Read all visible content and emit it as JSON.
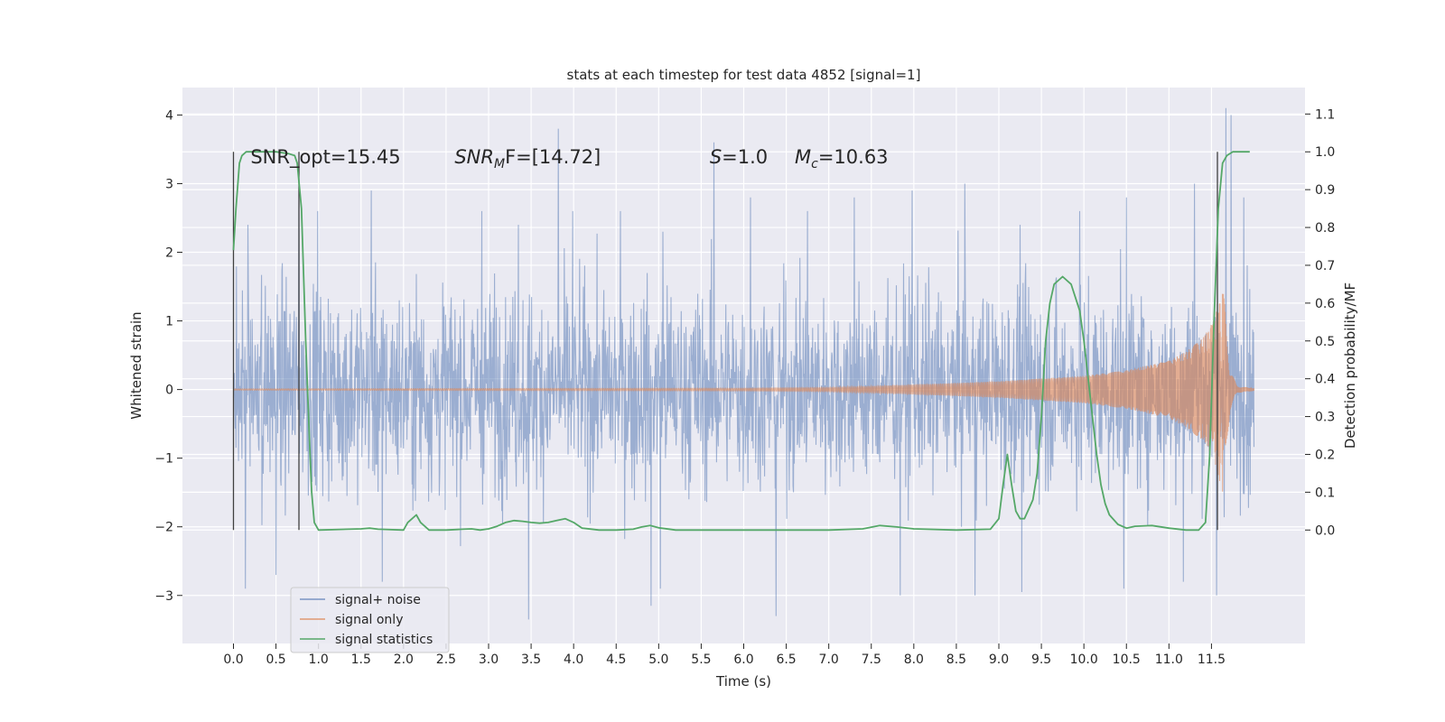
{
  "chart_data": {
    "type": "line",
    "title": "stats at each timestep for test data 4852 [signal=1]",
    "xlabel": "Time (s)",
    "ylabel": "Whitened strain",
    "y2label": "Detection probability/MF",
    "xlim": [
      -0.6,
      12.6
    ],
    "ylim": [
      -3.7,
      4.4
    ],
    "y2lim": [
      -0.3,
      1.17
    ],
    "x_ticks": [
      "0.0",
      "0.5",
      "1.0",
      "1.5",
      "2.0",
      "2.5",
      "3.0",
      "3.5",
      "4.0",
      "4.5",
      "5.0",
      "5.5",
      "6.0",
      "6.5",
      "7.0",
      "7.5",
      "8.0",
      "8.5",
      "9.0",
      "9.5",
      "10.0",
      "10.5",
      "11.0",
      "11.5"
    ],
    "y_ticks": [
      "−3",
      "−2",
      "−1",
      "0",
      "1",
      "2",
      "3",
      "4"
    ],
    "y2_ticks": [
      "0.0",
      "0.1",
      "0.2",
      "0.3",
      "0.4",
      "0.5",
      "0.6",
      "0.7",
      "0.8",
      "0.9",
      "1.0",
      "1.1"
    ],
    "grid": true,
    "legend_position": "lower-left",
    "annotations": [
      {
        "id": "snr-opt",
        "text": "SNR_opt=15.45",
        "x": 0.2
      },
      {
        "id": "snr-mf",
        "text": "SNR_MF=[14.72]",
        "main": "SNR",
        "sub": "M",
        "rest": "F=[14.72]",
        "x": 2.6
      },
      {
        "id": "s",
        "text": "S=1.0",
        "main": "S",
        "rest": "=1.0",
        "x": 5.6
      },
      {
        "id": "mc",
        "text": "M_c=10.63",
        "main": "M",
        "sub": "c",
        "rest": "=10.63",
        "x": 6.6
      }
    ],
    "vlines": [
      0.0,
      0.77,
      11.57
    ],
    "series": [
      {
        "name": "signal+ noise",
        "color": "#4c72b0",
        "opacity": 0.5,
        "axis": "left",
        "x_range": [
          0.0,
          12.0
        ],
        "envelope_typical": 1.6,
        "peaks": [
          {
            "x": 0.17,
            "y": 2.4
          },
          {
            "x": 0.77,
            "y": 2.9
          },
          {
            "x": 0.99,
            "y": 2.6
          },
          {
            "x": 1.62,
            "y": 2.9
          },
          {
            "x": 2.92,
            "y": 2.6
          },
          {
            "x": 3.35,
            "y": 2.4
          },
          {
            "x": 3.82,
            "y": 3.8
          },
          {
            "x": 3.99,
            "y": 2.6
          },
          {
            "x": 4.55,
            "y": 2.6
          },
          {
            "x": 5.05,
            "y": 2.3
          },
          {
            "x": 5.65,
            "y": 3.6
          },
          {
            "x": 6.08,
            "y": 2.8
          },
          {
            "x": 6.75,
            "y": 2.6
          },
          {
            "x": 7.3,
            "y": 2.8
          },
          {
            "x": 7.98,
            "y": 2.9
          },
          {
            "x": 8.6,
            "y": 3.0
          },
          {
            "x": 9.25,
            "y": 2.4
          },
          {
            "x": 9.95,
            "y": 2.6
          },
          {
            "x": 10.5,
            "y": 2.8
          },
          {
            "x": 11.3,
            "y": 3.0
          },
          {
            "x": 11.67,
            "y": 4.1
          },
          {
            "x": 11.73,
            "y": 4.0
          },
          {
            "x": 11.88,
            "y": 2.8
          }
        ],
        "troughs": [
          {
            "x": 0.14,
            "y": -2.9
          },
          {
            "x": 0.5,
            "y": -2.7
          },
          {
            "x": 1.75,
            "y": -2.8
          },
          {
            "x": 3.47,
            "y": -3.35
          },
          {
            "x": 4.91,
            "y": -3.15
          },
          {
            "x": 5.02,
            "y": -2.9
          },
          {
            "x": 6.38,
            "y": -3.3
          },
          {
            "x": 7.84,
            "y": -3.0
          },
          {
            "x": 8.72,
            "y": -3.0
          },
          {
            "x": 9.27,
            "y": -2.95
          },
          {
            "x": 10.47,
            "y": -2.9
          },
          {
            "x": 11.17,
            "y": -2.8
          },
          {
            "x": 11.56,
            "y": -3.0
          }
        ]
      },
      {
        "name": "signal only",
        "color": "#dd8452",
        "opacity": 0.6,
        "axis": "left",
        "x": [
          0.0,
          6.0,
          7.0,
          8.0,
          9.0,
          9.5,
          10.0,
          10.5,
          11.0,
          11.2,
          11.4,
          11.5,
          11.55,
          11.6,
          11.63,
          11.66,
          11.68,
          11.72,
          11.8,
          12.0
        ],
        "amplitude": [
          0.01,
          0.02,
          0.03,
          0.07,
          0.12,
          0.16,
          0.2,
          0.28,
          0.42,
          0.55,
          0.75,
          0.95,
          1.1,
          1.35,
          1.5,
          1.2,
          0.8,
          0.3,
          0.05,
          0.02
        ]
      },
      {
        "name": "signal statistics",
        "color": "#55a868",
        "axis": "right",
        "x": [
          0.0,
          0.03,
          0.07,
          0.1,
          0.15,
          0.2,
          0.3,
          0.5,
          0.65,
          0.72,
          0.75,
          0.8,
          0.85,
          0.9,
          0.92,
          0.95,
          1.0,
          1.5,
          1.6,
          1.7,
          2.0,
          2.05,
          2.1,
          2.15,
          2.2,
          2.3,
          2.5,
          2.7,
          2.8,
          2.9,
          3.0,
          3.1,
          3.2,
          3.3,
          3.4,
          3.5,
          3.6,
          3.7,
          3.8,
          3.9,
          4.0,
          4.1,
          4.3,
          4.5,
          4.7,
          4.8,
          4.9,
          5.0,
          5.2,
          5.5,
          6.0,
          6.5,
          7.0,
          7.4,
          7.6,
          7.8,
          8.0,
          8.5,
          8.9,
          9.0,
          9.05,
          9.1,
          9.15,
          9.2,
          9.25,
          9.3,
          9.4,
          9.45,
          9.5,
          9.55,
          9.6,
          9.65,
          9.75,
          9.85,
          9.95,
          10.0,
          10.05,
          10.1,
          10.15,
          10.2,
          10.25,
          10.3,
          10.4,
          10.5,
          10.6,
          10.8,
          11.0,
          11.2,
          11.35,
          11.43,
          11.48,
          11.53,
          11.58,
          11.63,
          11.68,
          11.75,
          11.85,
          11.95
        ],
        "y": [
          0.74,
          0.85,
          0.97,
          0.99,
          1.0,
          1.0,
          1.0,
          1.0,
          0.995,
          0.99,
          0.97,
          0.85,
          0.5,
          0.2,
          0.1,
          0.02,
          0.0,
          0.003,
          0.005,
          0.002,
          0.0,
          0.02,
          0.03,
          0.04,
          0.02,
          0.0,
          0.0,
          0.002,
          0.003,
          0.0,
          0.003,
          0.01,
          0.02,
          0.025,
          0.023,
          0.02,
          0.018,
          0.02,
          0.025,
          0.03,
          0.02,
          0.005,
          0.0,
          0.0,
          0.002,
          0.008,
          0.012,
          0.006,
          0.0,
          0.0,
          0.0,
          0.0,
          0.0,
          0.003,
          0.012,
          0.008,
          0.003,
          0.0,
          0.002,
          0.03,
          0.12,
          0.2,
          0.12,
          0.05,
          0.03,
          0.03,
          0.08,
          0.15,
          0.3,
          0.5,
          0.6,
          0.65,
          0.67,
          0.65,
          0.58,
          0.5,
          0.4,
          0.3,
          0.2,
          0.12,
          0.07,
          0.04,
          0.015,
          0.005,
          0.01,
          0.012,
          0.005,
          0.0,
          0.0,
          0.02,
          0.2,
          0.55,
          0.85,
          0.97,
          0.99,
          1.0,
          1.0,
          1.0
        ]
      }
    ]
  }
}
